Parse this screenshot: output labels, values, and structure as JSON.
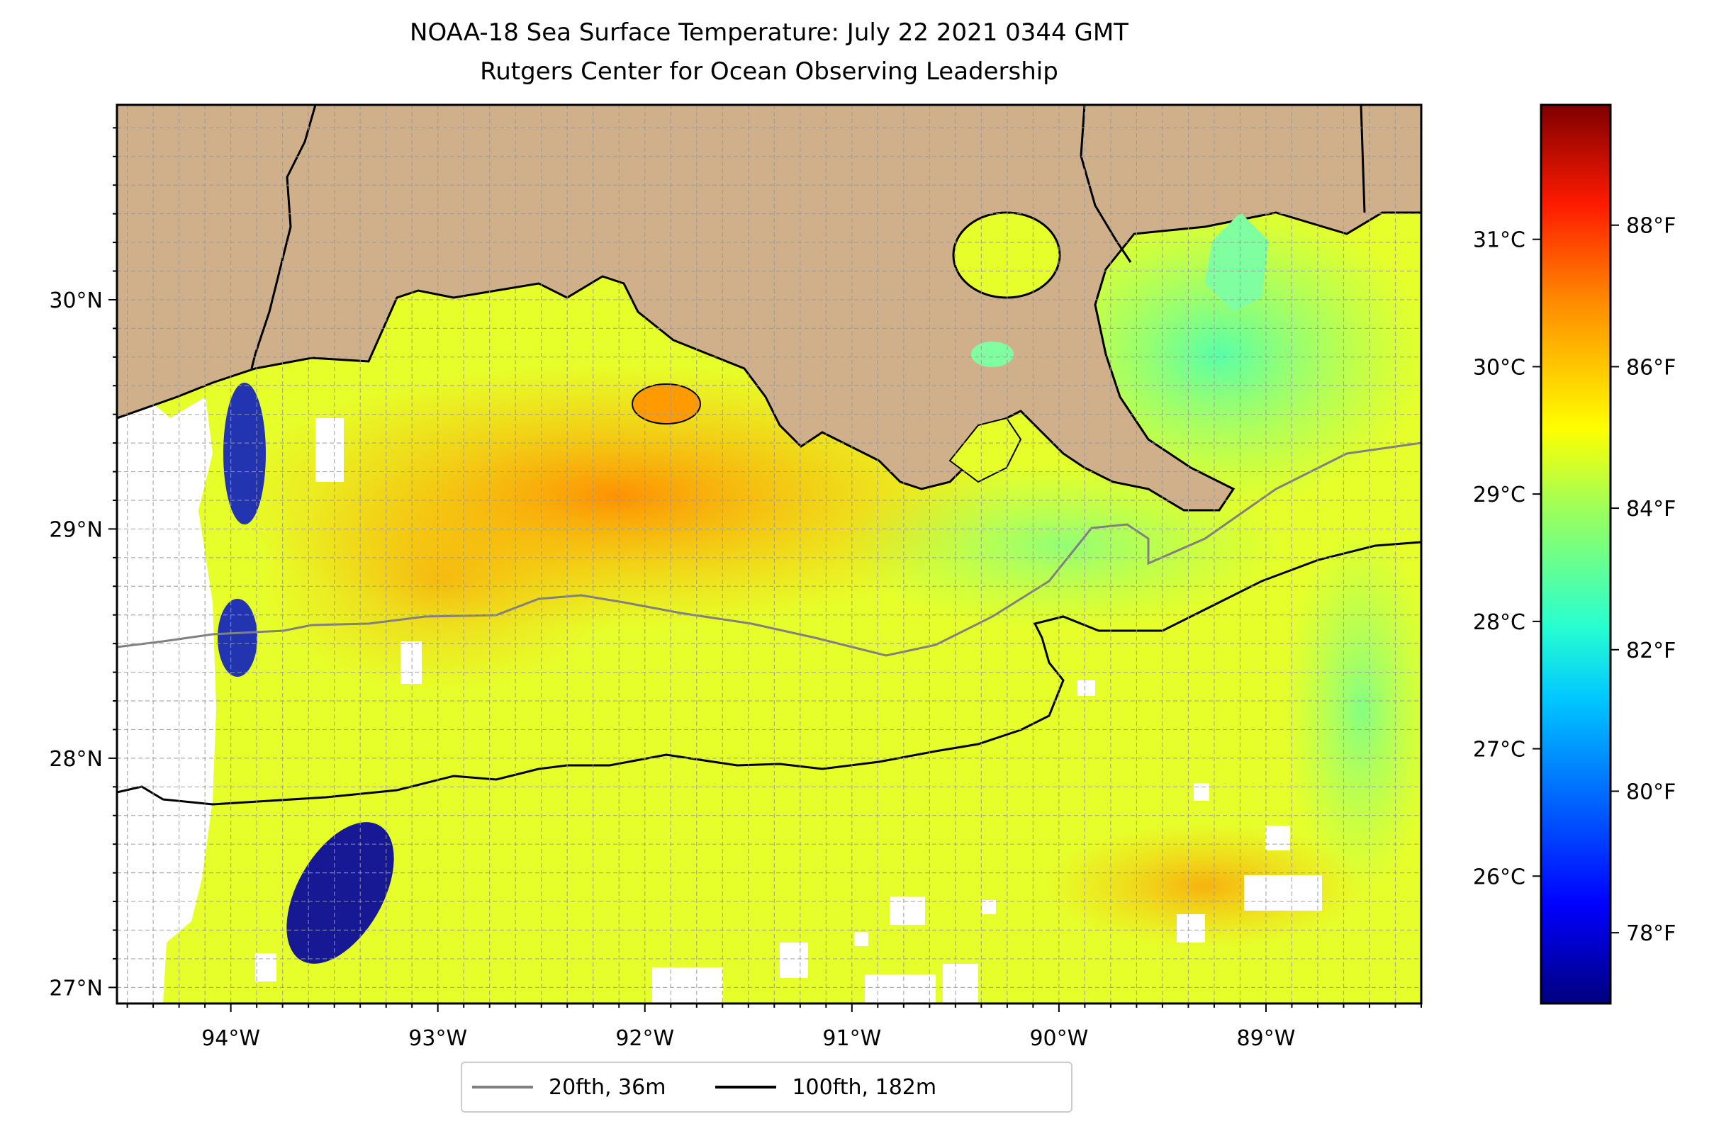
{
  "title": "NOAA-18 Sea Surface Temperature: July 22 2021 0344 GMT",
  "subtitle": "Rutgers Center for Ocean Observing Leadership",
  "map": {
    "extent": {
      "lon": [
        -94.55,
        -88.25
      ],
      "lat": [
        26.93,
        30.85
      ]
    },
    "lon_ticks": [
      {
        "value": -94,
        "label": "94°W"
      },
      {
        "value": -93,
        "label": "93°W"
      },
      {
        "value": -92,
        "label": "92°W"
      },
      {
        "value": -91,
        "label": "91°W"
      },
      {
        "value": -90,
        "label": "90°W"
      },
      {
        "value": -89,
        "label": "89°W"
      }
    ],
    "lat_ticks": [
      {
        "value": 27,
        "label": "27°N"
      },
      {
        "value": 28,
        "label": "28°N"
      },
      {
        "value": 29,
        "label": "29°N"
      },
      {
        "value": 30,
        "label": "30°N"
      }
    ],
    "gridlines": "dashed, every 0.125°",
    "colors": {
      "land": "#cfb08a",
      "coast": "#000000",
      "grid": "#9a9a9a"
    }
  },
  "colorbar": {
    "colormap": "jet",
    "range_f": [
      77.0,
      89.7
    ],
    "f_ticks": [
      {
        "value": 78,
        "label": "78°F"
      },
      {
        "value": 80,
        "label": "80°F"
      },
      {
        "value": 82,
        "label": "82°F"
      },
      {
        "value": 84,
        "label": "84°F"
      },
      {
        "value": 86,
        "label": "86°F"
      },
      {
        "value": 88,
        "label": "88°F"
      }
    ],
    "c_ticks": [
      {
        "value": 26,
        "label": "26°C"
      },
      {
        "value": 27,
        "label": "27°C"
      },
      {
        "value": 28,
        "label": "28°C"
      },
      {
        "value": 29,
        "label": "29°C"
      },
      {
        "value": 30,
        "label": "30°C"
      },
      {
        "value": 31,
        "label": "31°C"
      }
    ],
    "stops": [
      "#00007f",
      "#0000ff",
      "#007fff",
      "#00ffff",
      "#7fff7f",
      "#ffff00",
      "#ff7f00",
      "#ff0000",
      "#7f0000"
    ]
  },
  "legend": {
    "items": [
      {
        "label": "20fth, 36m",
        "color": "#808080"
      },
      {
        "label": "100fth, 182m",
        "color": "#000000"
      }
    ]
  }
}
